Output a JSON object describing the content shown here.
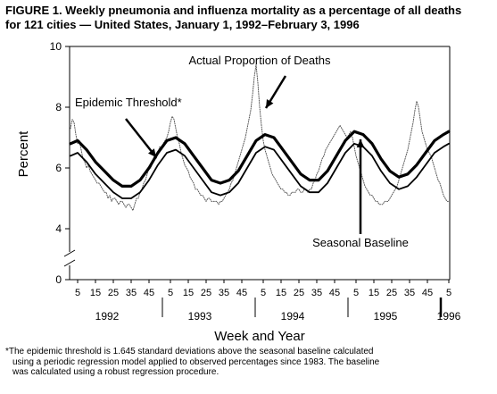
{
  "figure": {
    "title_lines": [
      "FIGURE 1. Weekly pneumonia and influenza mortality as a percentage of all deaths",
      "for 121 cities — United States, January 1, 1992–February 3, 1996"
    ],
    "footnote_lines": [
      "*The epidemic threshold is 1.645 standard deviations above the seasonal baseline calculated",
      "using a periodic regression model applied to observed percentages since 1983. The baseline",
      "was calculated using a robust regression procedure."
    ]
  },
  "chart_data": {
    "type": "line",
    "title": "Weekly pneumonia and influenza mortality as a percentage of all deaths for 121 cities — United States, January 1, 1992–February 3, 1996",
    "xlabel": "Week and Year",
    "ylabel": "Percent",
    "ylim": [
      0,
      10
    ],
    "y_ticks": [
      0,
      4,
      6,
      8,
      10
    ],
    "y_axis_break": true,
    "week_tick_labels": [
      "5",
      "15",
      "25",
      "35",
      "45",
      "5",
      "15",
      "25",
      "35",
      "45",
      "5",
      "15",
      "25",
      "35",
      "45",
      "5",
      "15",
      "25",
      "35",
      "45",
      "5"
    ],
    "years": [
      {
        "label": "1992",
        "weeks": 52
      },
      {
        "label": "1993",
        "weeks": 52
      },
      {
        "label": "1994",
        "weeks": 52
      },
      {
        "label": "1995",
        "weeks": 52
      },
      {
        "label": "1996",
        "weeks": 5
      }
    ],
    "x_note": "x values are cumulative week numbers starting at week 1 of 1992",
    "series": [
      {
        "name": "Actual Proportion of Deaths",
        "style": "dotted",
        "points": [
          [
            1,
            7.3
          ],
          [
            2,
            7.6
          ],
          [
            3,
            7.5
          ],
          [
            4,
            7.1
          ],
          [
            5,
            6.8
          ],
          [
            6,
            6.9
          ],
          [
            7,
            6.6
          ],
          [
            8,
            6.3
          ],
          [
            9,
            6.2
          ],
          [
            10,
            6.0
          ],
          [
            11,
            6.1
          ],
          [
            12,
            5.9
          ],
          [
            13,
            5.8
          ],
          [
            14,
            5.7
          ],
          [
            15,
            5.6
          ],
          [
            16,
            5.5
          ],
          [
            17,
            5.5
          ],
          [
            18,
            5.4
          ],
          [
            19,
            5.3
          ],
          [
            20,
            5.2
          ],
          [
            21,
            5.2
          ],
          [
            22,
            5.0
          ],
          [
            23,
            5.1
          ],
          [
            24,
            4.9
          ],
          [
            25,
            5.0
          ],
          [
            26,
            5.0
          ],
          [
            27,
            4.9
          ],
          [
            28,
            4.8
          ],
          [
            29,
            4.9
          ],
          [
            30,
            4.9
          ],
          [
            31,
            4.8
          ],
          [
            32,
            4.7
          ],
          [
            33,
            4.8
          ],
          [
            34,
            4.8
          ],
          [
            35,
            4.7
          ],
          [
            36,
            4.6
          ],
          [
            37,
            4.8
          ],
          [
            38,
            5.0
          ],
          [
            39,
            5.0
          ],
          [
            40,
            5.2
          ],
          [
            41,
            5.3
          ],
          [
            42,
            5.5
          ],
          [
            43,
            5.6
          ],
          [
            44,
            5.8
          ],
          [
            45,
            6.0
          ],
          [
            46,
            6.0
          ],
          [
            47,
            6.2
          ],
          [
            48,
            6.4
          ],
          [
            49,
            6.3
          ],
          [
            50,
            6.5
          ],
          [
            51,
            6.7
          ],
          [
            52,
            6.6
          ],
          [
            53,
            6.8
          ],
          [
            54,
            6.9
          ],
          [
            55,
            7.0
          ],
          [
            56,
            7.2
          ],
          [
            57,
            7.5
          ],
          [
            58,
            7.7
          ],
          [
            59,
            7.6
          ],
          [
            60,
            7.3
          ],
          [
            61,
            7.0
          ],
          [
            62,
            6.8
          ],
          [
            63,
            6.5
          ],
          [
            64,
            6.3
          ],
          [
            65,
            6.1
          ],
          [
            66,
            6.0
          ],
          [
            67,
            5.9
          ],
          [
            68,
            5.7
          ],
          [
            69,
            5.6
          ],
          [
            70,
            5.5
          ],
          [
            71,
            5.3
          ],
          [
            72,
            5.3
          ],
          [
            73,
            5.2
          ],
          [
            74,
            5.1
          ],
          [
            75,
            5.1
          ],
          [
            76,
            5.0
          ],
          [
            77,
            4.9
          ],
          [
            78,
            5.0
          ],
          [
            79,
            5.0
          ],
          [
            80,
            4.9
          ],
          [
            81,
            4.9
          ],
          [
            82,
            4.9
          ],
          [
            83,
            4.9
          ],
          [
            84,
            4.8
          ],
          [
            85,
            4.9
          ],
          [
            86,
            4.9
          ],
          [
            87,
            5.0
          ],
          [
            88,
            5.1
          ],
          [
            89,
            5.2
          ],
          [
            90,
            5.3
          ],
          [
            91,
            5.5
          ],
          [
            92,
            5.6
          ],
          [
            93,
            5.8
          ],
          [
            94,
            6.0
          ],
          [
            95,
            6.2
          ],
          [
            96,
            6.4
          ],
          [
            97,
            6.6
          ],
          [
            98,
            6.8
          ],
          [
            99,
            7.0
          ],
          [
            100,
            7.3
          ],
          [
            101,
            7.6
          ],
          [
            102,
            7.9
          ],
          [
            103,
            8.4
          ],
          [
            104,
            9.0
          ],
          [
            105,
            9.4
          ],
          [
            106,
            8.8
          ],
          [
            107,
            8.0
          ],
          [
            108,
            7.4
          ],
          [
            109,
            6.9
          ],
          [
            110,
            6.6
          ],
          [
            111,
            6.4
          ],
          [
            112,
            6.2
          ],
          [
            113,
            6.0
          ],
          [
            114,
            5.8
          ],
          [
            115,
            5.7
          ],
          [
            116,
            5.6
          ],
          [
            117,
            5.5
          ],
          [
            118,
            5.4
          ],
          [
            119,
            5.3
          ],
          [
            120,
            5.3
          ],
          [
            121,
            5.2
          ],
          [
            122,
            5.2
          ],
          [
            123,
            5.1
          ],
          [
            124,
            5.1
          ],
          [
            125,
            5.2
          ],
          [
            126,
            5.2
          ],
          [
            127,
            5.2
          ],
          [
            128,
            5.3
          ],
          [
            129,
            5.3
          ],
          [
            130,
            5.2
          ],
          [
            131,
            5.2
          ],
          [
            132,
            5.3
          ],
          [
            133,
            5.3
          ],
          [
            134,
            5.2
          ],
          [
            135,
            5.3
          ],
          [
            136,
            5.3
          ],
          [
            137,
            5.5
          ],
          [
            138,
            5.6
          ],
          [
            139,
            5.8
          ],
          [
            140,
            5.9
          ],
          [
            141,
            6.1
          ],
          [
            142,
            6.3
          ],
          [
            143,
            6.4
          ],
          [
            144,
            6.6
          ],
          [
            145,
            6.7
          ],
          [
            146,
            6.8
          ],
          [
            147,
            6.9
          ],
          [
            148,
            7.0
          ],
          [
            149,
            7.1
          ],
          [
            150,
            7.2
          ],
          [
            151,
            7.3
          ],
          [
            152,
            7.4
          ],
          [
            153,
            7.3
          ],
          [
            154,
            7.2
          ],
          [
            155,
            7.1
          ],
          [
            156,
            7.0
          ],
          [
            157,
            7.1
          ],
          [
            158,
            7.2
          ],
          [
            159,
            7.0
          ],
          [
            160,
            6.7
          ],
          [
            161,
            6.4
          ],
          [
            162,
            6.2
          ],
          [
            163,
            6.0
          ],
          [
            164,
            5.8
          ],
          [
            165,
            5.6
          ],
          [
            166,
            5.4
          ],
          [
            167,
            5.3
          ],
          [
            168,
            5.2
          ],
          [
            169,
            5.1
          ],
          [
            170,
            5.1
          ],
          [
            171,
            5.0
          ],
          [
            172,
            4.9
          ],
          [
            173,
            4.9
          ],
          [
            174,
            4.8
          ],
          [
            175,
            4.8
          ],
          [
            176,
            4.8
          ],
          [
            177,
            4.9
          ],
          [
            178,
            4.9
          ],
          [
            179,
            4.9
          ],
          [
            180,
            5.0
          ],
          [
            181,
            5.1
          ],
          [
            182,
            5.2
          ],
          [
            183,
            5.3
          ],
          [
            184,
            5.4
          ],
          [
            185,
            5.6
          ],
          [
            186,
            5.8
          ],
          [
            187,
            6.0
          ],
          [
            188,
            6.2
          ],
          [
            189,
            6.4
          ],
          [
            190,
            6.6
          ],
          [
            191,
            6.9
          ],
          [
            192,
            7.2
          ],
          [
            193,
            7.5
          ],
          [
            194,
            7.9
          ],
          [
            195,
            8.2
          ],
          [
            196,
            8.0
          ],
          [
            197,
            7.6
          ],
          [
            198,
            7.2
          ],
          [
            199,
            7.0
          ],
          [
            200,
            6.8
          ],
          [
            201,
            6.6
          ],
          [
            202,
            6.5
          ],
          [
            203,
            6.4
          ],
          [
            204,
            6.2
          ],
          [
            205,
            6.0
          ],
          [
            206,
            5.8
          ],
          [
            207,
            5.6
          ],
          [
            208,
            5.5
          ],
          [
            209,
            5.3
          ],
          [
            210,
            5.1
          ],
          [
            211,
            5.0
          ],
          [
            212,
            4.9
          ],
          [
            213,
            4.9
          ]
        ]
      },
      {
        "name": "Epidemic Threshold*",
        "style": "thick",
        "points": [
          [
            1,
            6.8
          ],
          [
            5,
            6.9
          ],
          [
            10,
            6.6
          ],
          [
            15,
            6.2
          ],
          [
            20,
            5.9
          ],
          [
            25,
            5.6
          ],
          [
            30,
            5.4
          ],
          [
            35,
            5.4
          ],
          [
            40,
            5.6
          ],
          [
            45,
            6.0
          ],
          [
            50,
            6.5
          ],
          [
            55,
            6.9
          ],
          [
            60,
            7.0
          ],
          [
            65,
            6.8
          ],
          [
            70,
            6.4
          ],
          [
            75,
            6.0
          ],
          [
            80,
            5.6
          ],
          [
            85,
            5.5
          ],
          [
            90,
            5.6
          ],
          [
            95,
            5.9
          ],
          [
            100,
            6.4
          ],
          [
            105,
            6.9
          ],
          [
            110,
            7.1
          ],
          [
            115,
            7.0
          ],
          [
            120,
            6.6
          ],
          [
            125,
            6.2
          ],
          [
            130,
            5.8
          ],
          [
            135,
            5.6
          ],
          [
            140,
            5.6
          ],
          [
            145,
            5.9
          ],
          [
            150,
            6.4
          ],
          [
            155,
            6.9
          ],
          [
            160,
            7.2
          ],
          [
            165,
            7.1
          ],
          [
            170,
            6.8
          ],
          [
            175,
            6.3
          ],
          [
            180,
            5.9
          ],
          [
            185,
            5.7
          ],
          [
            190,
            5.8
          ],
          [
            195,
            6.1
          ],
          [
            200,
            6.5
          ],
          [
            205,
            6.9
          ],
          [
            210,
            7.1
          ],
          [
            213,
            7.2
          ]
        ]
      },
      {
        "name": "Seasonal Baseline",
        "style": "thin",
        "points": [
          [
            1,
            6.4
          ],
          [
            5,
            6.5
          ],
          [
            10,
            6.2
          ],
          [
            15,
            5.8
          ],
          [
            20,
            5.5
          ],
          [
            25,
            5.2
          ],
          [
            30,
            5.0
          ],
          [
            35,
            5.0
          ],
          [
            40,
            5.2
          ],
          [
            45,
            5.6
          ],
          [
            50,
            6.1
          ],
          [
            55,
            6.5
          ],
          [
            60,
            6.6
          ],
          [
            65,
            6.4
          ],
          [
            70,
            6.0
          ],
          [
            75,
            5.6
          ],
          [
            80,
            5.2
          ],
          [
            85,
            5.1
          ],
          [
            90,
            5.2
          ],
          [
            95,
            5.5
          ],
          [
            100,
            6.0
          ],
          [
            105,
            6.5
          ],
          [
            110,
            6.7
          ],
          [
            115,
            6.6
          ],
          [
            120,
            6.2
          ],
          [
            125,
            5.8
          ],
          [
            130,
            5.4
          ],
          [
            135,
            5.2
          ],
          [
            140,
            5.2
          ],
          [
            145,
            5.5
          ],
          [
            150,
            6.0
          ],
          [
            155,
            6.5
          ],
          [
            160,
            6.8
          ],
          [
            165,
            6.7
          ],
          [
            170,
            6.4
          ],
          [
            175,
            5.9
          ],
          [
            180,
            5.5
          ],
          [
            185,
            5.3
          ],
          [
            190,
            5.4
          ],
          [
            195,
            5.7
          ],
          [
            200,
            6.1
          ],
          [
            205,
            6.5
          ],
          [
            210,
            6.7
          ],
          [
            213,
            6.8
          ]
        ]
      }
    ],
    "annotations": [
      {
        "text": "Actual Proportion of Deaths",
        "series": "Actual Proportion of Deaths"
      },
      {
        "text": "Epidemic Threshold*",
        "series": "Epidemic Threshold*"
      },
      {
        "text": "Seasonal Baseline",
        "series": "Seasonal Baseline"
      }
    ]
  }
}
